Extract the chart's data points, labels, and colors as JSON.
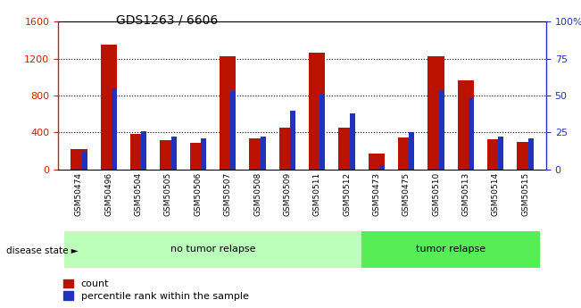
{
  "title": "GDS1263 / 6606",
  "samples": [
    "GSM50474",
    "GSM50496",
    "GSM50504",
    "GSM50505",
    "GSM50506",
    "GSM50507",
    "GSM50508",
    "GSM50509",
    "GSM50511",
    "GSM50512",
    "GSM50473",
    "GSM50475",
    "GSM50510",
    "GSM50513",
    "GSM50514",
    "GSM50515"
  ],
  "counts": [
    220,
    1350,
    380,
    320,
    290,
    1220,
    340,
    450,
    1260,
    450,
    175,
    350,
    1220,
    960,
    330,
    300
  ],
  "percentiles": [
    12,
    55,
    26,
    22,
    21,
    53,
    22,
    40,
    51,
    38,
    3,
    25,
    53,
    49,
    22,
    21
  ],
  "groups": [
    {
      "label": "no tumor relapse",
      "start": 0,
      "end": 10,
      "color": "#bbffbb"
    },
    {
      "label": "tumor relapse",
      "start": 10,
      "end": 16,
      "color": "#55ee55"
    }
  ],
  "ylim_left": [
    0,
    1600
  ],
  "ylim_right": [
    0,
    100
  ],
  "yticks_left": [
    0,
    400,
    800,
    1200,
    1600
  ],
  "yticks_right": [
    0,
    25,
    50,
    75,
    100
  ],
  "bar_color_count": "#bb1100",
  "bar_color_percentile": "#2233bb",
  "left_axis_color": "#cc2200",
  "right_axis_color": "#2233bb",
  "legend_count": "count",
  "legend_percentile": "percentile rank within the sample",
  "disease_state_label": "disease state ►"
}
